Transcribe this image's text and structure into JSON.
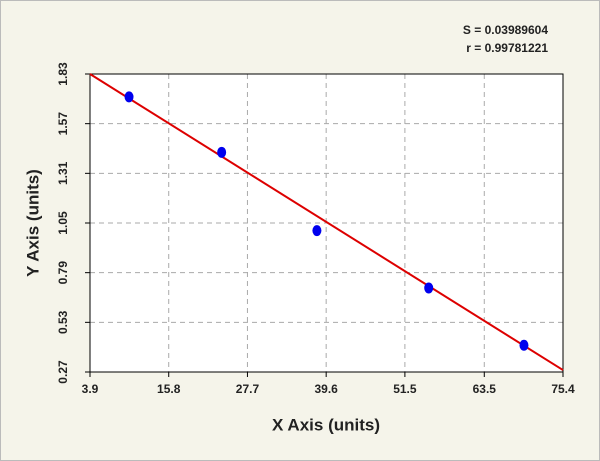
{
  "chart_data": {
    "type": "scatter",
    "xlabel": "X Axis (units)",
    "ylabel": "Y Axis (units)",
    "annotations": [
      "S = 0.03989604",
      "r = 0.99781221"
    ],
    "series": [
      {
        "color": "#0000ee",
        "x": [
          9.8,
          23.8,
          38.2,
          55.1,
          69.5
        ],
        "values": [
          1.71,
          1.42,
          1.01,
          0.71,
          0.41
        ]
      }
    ],
    "fit_line": {
      "color": "#dd0000",
      "x": [
        3.9,
        75.4
      ],
      "values": [
        1.83,
        0.28
      ]
    },
    "xlim": [
      3.9,
      75.4
    ],
    "xticks": [
      3.9,
      15.8,
      27.7,
      39.6,
      51.5,
      63.5,
      75.4
    ],
    "ylim": [
      0.27,
      1.83
    ],
    "yticks": [
      0.27,
      0.53,
      0.79,
      1.05,
      1.31,
      1.57,
      1.83
    ],
    "grid": true
  }
}
